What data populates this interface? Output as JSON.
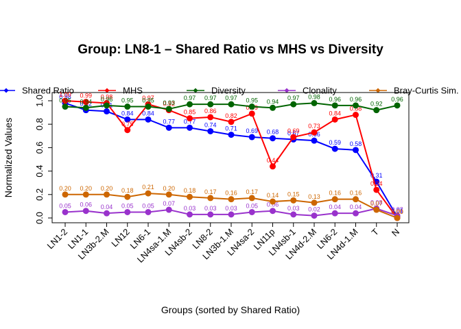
{
  "chart_data": {
    "type": "line",
    "title": "Group: LN8-1 – Shared Ratio vs MHS vs Diversity",
    "xlabel": "Groups (sorted by Shared Ratio)",
    "ylabel": "Normalized Values",
    "ylim": [
      0,
      1
    ],
    "yticks": [
      "0.0",
      "0.2",
      "0.4",
      "0.6",
      "0.8",
      "1.0"
    ],
    "categories": [
      "LN1-2",
      "LN1-1",
      "LN3b-2.M",
      "LN12",
      "LN6-1",
      "LN4sa-1.M",
      "LN4sb-2",
      "LN8-2",
      "LN3b-1.M",
      "LN4sa-2",
      "LN11p",
      "LN4sb-1",
      "LN4d-2.M",
      "LN6-2",
      "LN4d-1.M",
      "T",
      "N"
    ],
    "legend_position": "top",
    "series": [
      {
        "name": "Shared Ratio",
        "color": "#0000ff",
        "values": [
          0.98,
          0.92,
          0.91,
          0.84,
          0.84,
          0.77,
          0.77,
          0.74,
          0.71,
          0.69,
          0.68,
          0.67,
          0.66,
          0.59,
          0.58,
          0.31,
          0.01
        ],
        "labels": [
          "0.98",
          "0.92",
          "0.91",
          "0.84",
          "0.84",
          "0.77",
          "0.77",
          "0.74",
          "0.71",
          "0.69",
          "0.68",
          "0.67",
          "0.66",
          "0.59",
          "0.58",
          "0.31",
          "0.01"
        ]
      },
      {
        "name": "MHS",
        "color": "#ff0000",
        "values": [
          1.0,
          0.99,
          0.98,
          0.75,
          0.97,
          0.92,
          0.85,
          0.86,
          0.82,
          0.89,
          0.44,
          0.69,
          0.73,
          0.84,
          0.88,
          0.24,
          0.0
        ],
        "labels": [
          "1.00",
          "0.99",
          "0.98",
          "0.75",
          "0.97",
          "0.92",
          "0.85",
          "0.86",
          "0.82",
          "0.89",
          "0.44",
          "0.69",
          "0.73",
          "0.84",
          "0.88",
          "0.24",
          "0.00"
        ]
      },
      {
        "name": "Diversity",
        "color": "#006400",
        "values": [
          0.95,
          0.94,
          0.96,
          0.95,
          0.95,
          0.93,
          0.97,
          0.97,
          0.97,
          0.95,
          0.94,
          0.97,
          0.98,
          0.96,
          0.96,
          0.92,
          0.96
        ],
        "labels": [
          "0.95",
          "0.94",
          "0.96",
          "0.95",
          "0.95",
          "0.93",
          "0.97",
          "0.97",
          "0.97",
          "0.95",
          "0.94",
          "0.97",
          "0.98",
          "0.96",
          "0.96",
          "0.92",
          "0.96"
        ]
      },
      {
        "name": "Clonality",
        "color": "#9932cc",
        "values": [
          0.05,
          0.06,
          0.04,
          0.05,
          0.05,
          0.07,
          0.03,
          0.03,
          0.03,
          0.05,
          0.06,
          0.03,
          0.02,
          0.04,
          0.04,
          0.08,
          0.02
        ],
        "labels": [
          "0.05",
          "0.06",
          "0.04",
          "0.05",
          "0.05",
          "0.07",
          "0.03",
          "0.03",
          "0.03",
          "0.05",
          "0.06",
          "0.03",
          "0.02",
          "0.04",
          "0.04",
          "0.08",
          "0.02"
        ]
      },
      {
        "name": "Bray-Curtis Sim.",
        "color": "#cd6600",
        "values": [
          0.2,
          0.2,
          0.2,
          0.18,
          0.21,
          0.2,
          0.18,
          0.17,
          0.16,
          0.17,
          0.14,
          0.15,
          0.13,
          0.16,
          0.16,
          0.07,
          0.0
        ],
        "labels": [
          "0.20",
          "0.20",
          "0.20",
          "0.18",
          "0.21",
          "0.20",
          "0.18",
          "0.17",
          "0.16",
          "0.17",
          "0.14",
          "0.15",
          "0.13",
          "0.16",
          "0.16",
          "0.07",
          "0.00"
        ]
      }
    ]
  }
}
